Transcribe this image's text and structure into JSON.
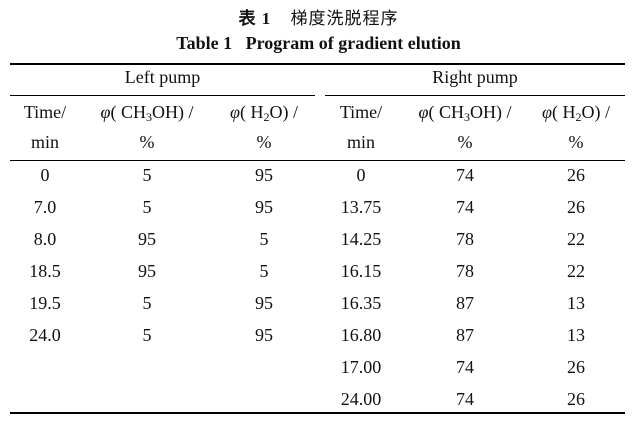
{
  "caption": {
    "cn_number": "表 1",
    "cn_title": "梯度洗脱程序",
    "en": "Table 1   Program of gradient elution"
  },
  "groups": {
    "left": "Left pump",
    "right": "Right pump"
  },
  "headers": {
    "time_line1": "Time/",
    "time_line2": "min",
    "ch3oh_prefix": "φ",
    "ch3oh_formula_a": "( CH",
    "ch3oh_sub": "3",
    "ch3oh_formula_b": "OH) /",
    "h2o_prefix": "φ",
    "h2o_formula_a": "( H",
    "h2o_sub": "2",
    "h2o_formula_b": "O) /",
    "unit": "%"
  },
  "left_rows": [
    [
      "0",
      "5",
      "95"
    ],
    [
      "7.0",
      "5",
      "95"
    ],
    [
      "8.0",
      "95",
      "5"
    ],
    [
      "18.5",
      "95",
      "5"
    ],
    [
      "19.5",
      "5",
      "95"
    ],
    [
      "24.0",
      "5",
      "95"
    ]
  ],
  "right_rows": [
    [
      "0",
      "74",
      "26"
    ],
    [
      "13.75",
      "74",
      "26"
    ],
    [
      "14.25",
      "78",
      "22"
    ],
    [
      "16.15",
      "78",
      "22"
    ],
    [
      "16.35",
      "87",
      "13"
    ],
    [
      "16.80",
      "87",
      "13"
    ],
    [
      "17.00",
      "74",
      "26"
    ],
    [
      "24.00",
      "74",
      "26"
    ]
  ]
}
